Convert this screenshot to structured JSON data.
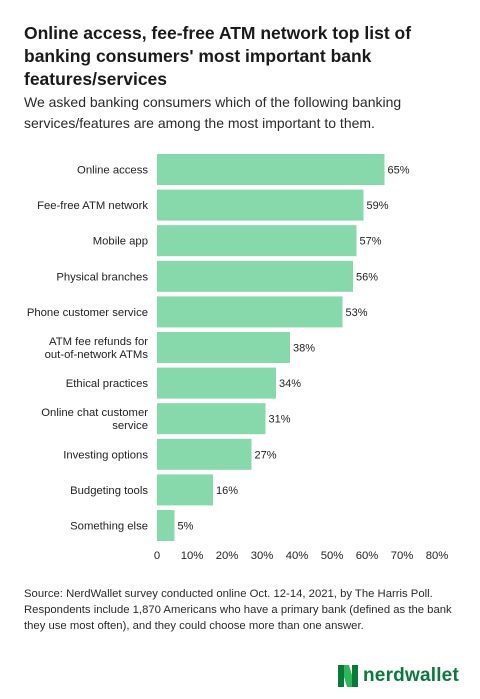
{
  "title": "Online access, fee-free ATM network top list of banking consumers' most important bank features/services",
  "subtitle": "We asked banking consumers which of the following banking services/features are among the most important to them.",
  "chart_data": {
    "type": "bar",
    "orientation": "horizontal",
    "categories": [
      [
        "Online access"
      ],
      [
        "Fee-free ATM network"
      ],
      [
        "Mobile app"
      ],
      [
        "Physical branches"
      ],
      [
        "Phone customer service"
      ],
      [
        "ATM fee refunds for",
        "out-of-network ATMs"
      ],
      [
        "Ethical practices"
      ],
      [
        "Online chat customer",
        "service"
      ],
      [
        "Investing options"
      ],
      [
        "Budgeting tools"
      ],
      [
        "Something else"
      ]
    ],
    "values": [
      65,
      59,
      57,
      56,
      53,
      38,
      34,
      31,
      27,
      16,
      5
    ],
    "data_labels": [
      "65%",
      "59%",
      "57%",
      "56%",
      "53%",
      "38%",
      "34%",
      "31%",
      "27%",
      "16%",
      "5%"
    ],
    "xlim": [
      0,
      80
    ],
    "xticks": [
      0,
      10,
      20,
      30,
      40,
      50,
      60,
      70,
      80
    ],
    "xtick_labels": [
      "0",
      "10%",
      "20%",
      "30%",
      "40%",
      "50%",
      "60%",
      "70%",
      "80%"
    ],
    "bar_color": "#87d8aa",
    "grid": false
  },
  "source": "Source: NerdWallet survey conducted online Oct. 12-14, 2021, by The Harris Poll. Respondents include 1,870 Americans who have a primary bank (defined as the bank they use most often), and they could choose more than one answer.",
  "logo": {
    "text": "nerdwallet",
    "color": "#0a7a3b"
  }
}
